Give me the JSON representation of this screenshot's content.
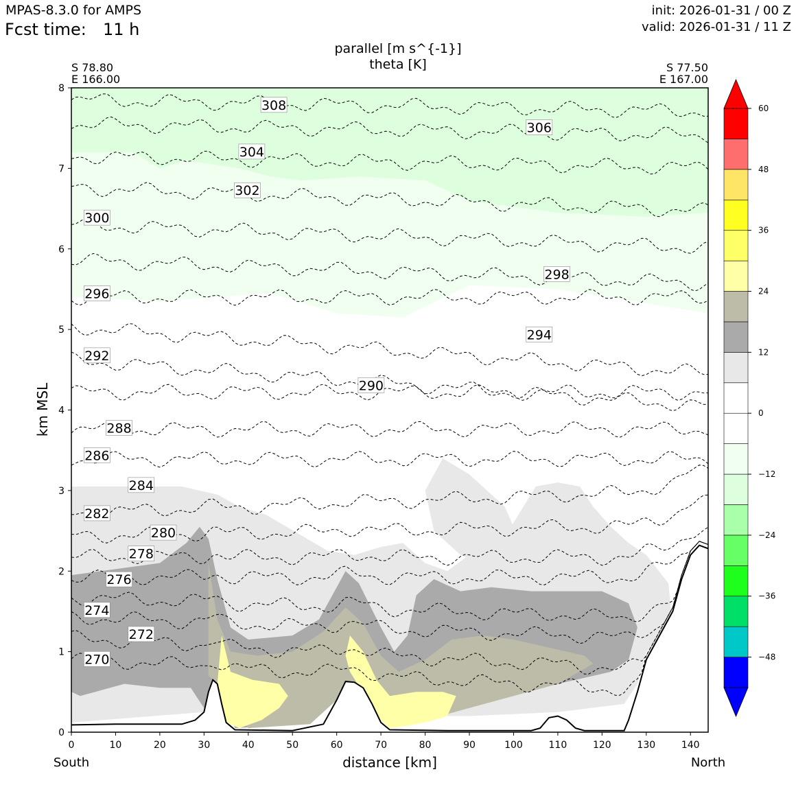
{
  "header": {
    "model": "MPAS-8.3.0 for AMPS",
    "fcst_label": "Fcst time:",
    "fcst_value": "11 h",
    "init": "init: 2026-01-31 / 00 Z",
    "valid": "valid: 2026-01-31 / 11 Z"
  },
  "plot": {
    "title_line1": "parallel [m s^{-1}]",
    "title_line2": "theta [K]",
    "left_lat": "S 78.80",
    "left_lon": "E 166.00",
    "right_lat": "S 77.50",
    "right_lon": "E 167.00",
    "south_label": "South",
    "north_label": "North"
  },
  "chart_data": {
    "type": "cross-section contour",
    "xlabel": "distance [km]",
    "ylabel": "km MSL",
    "xlim": [
      0,
      144
    ],
    "ylim": [
      0,
      8
    ],
    "x_ticks": [
      0,
      10,
      20,
      30,
      40,
      50,
      60,
      70,
      80,
      90,
      100,
      110,
      120,
      130,
      140
    ],
    "y_ticks": [
      0,
      1,
      2,
      3,
      4,
      5,
      6,
      7,
      8
    ],
    "colorbar": {
      "min": -54,
      "max": 60,
      "step": 6,
      "tick_values": [
        60,
        48,
        36,
        24,
        12,
        0,
        -12,
        -24,
        -36,
        -48
      ],
      "tick_labels": [
        "60",
        "48",
        "36",
        "24",
        "12",
        "0",
        "−12",
        "−24",
        "−36",
        "−48"
      ],
      "colors": [
        "#0000ff",
        "#00c8c8",
        "#00e066",
        "#1eff1e",
        "#66ff66",
        "#aaffaa",
        "#ddffdd",
        "#f0fff0",
        "#ffffff",
        "#ffffff",
        "#e8e8e8",
        "#aaaaaa",
        "#bcbca8",
        "#ffffa8",
        "#ffff66",
        "#ffff22",
        "#ffe566",
        "#ff6e6e",
        "#ff0000"
      ],
      "extend_min_color": "#0000ff",
      "extend_max_color": "#ff0000"
    },
    "terrain": [
      [
        0,
        0.09
      ],
      [
        10,
        0.1
      ],
      [
        25,
        0.1
      ],
      [
        28,
        0.15
      ],
      [
        30,
        0.25
      ],
      [
        31,
        0.5
      ],
      [
        32,
        0.65
      ],
      [
        33,
        0.6
      ],
      [
        34,
        0.35
      ],
      [
        35,
        0.12
      ],
      [
        37,
        0.03
      ],
      [
        50,
        0.02
      ],
      [
        57,
        0.1
      ],
      [
        60,
        0.4
      ],
      [
        62,
        0.63
      ],
      [
        64,
        0.62
      ],
      [
        66,
        0.55
      ],
      [
        68,
        0.35
      ],
      [
        70,
        0.12
      ],
      [
        72,
        0.03
      ],
      [
        85,
        0.02
      ],
      [
        104,
        0.02
      ],
      [
        106,
        0.05
      ],
      [
        108,
        0.18
      ],
      [
        110,
        0.2
      ],
      [
        112,
        0.15
      ],
      [
        114,
        0.05
      ],
      [
        116,
        0.02
      ],
      [
        125,
        0.02
      ],
      [
        126,
        0.15
      ],
      [
        128,
        0.5
      ],
      [
        130,
        0.9
      ],
      [
        133,
        1.2
      ],
      [
        136,
        1.5
      ],
      [
        138,
        1.9
      ],
      [
        140,
        2.2
      ],
      [
        142,
        2.32
      ],
      [
        144,
        2.28
      ]
    ],
    "theta_levels": [
      {
        "label": "270",
        "y0": 0.9,
        "slope": -0.003
      },
      {
        "label": "272",
        "y0": 1.16,
        "slope": -0.003
      },
      {
        "label": "274",
        "y0": 1.42,
        "slope": -0.002
      },
      {
        "label": "276",
        "y0": 1.67,
        "slope": -0.002
      },
      {
        "label": "278",
        "y0": 1.92,
        "slope": 0.0
      },
      {
        "label": "280",
        "y0": 2.17,
        "slope": 0.0
      },
      {
        "label": "282",
        "y0": 2.43,
        "slope": 0.001
      },
      {
        "label": "284",
        "y0": 2.72,
        "slope": 0.002
      },
      {
        "label": "286",
        "y0": 3.39,
        "slope": 0.0
      },
      {
        "label": "288",
        "y0": 3.76,
        "slope": 0.0
      },
      {
        "label": "290",
        "y0": 4.22,
        "slope": 0.0
      },
      {
        "label": "292",
        "y0": 4.62,
        "slope": -0.004
      },
      {
        "label": "294",
        "y0": 5.03,
        "slope": -0.004
      },
      {
        "label": "296",
        "y0": 5.4,
        "slope": 0.0
      },
      {
        "label": "298",
        "y0": 5.86,
        "slope": -0.002
      },
      {
        "label": "300",
        "y0": 6.3,
        "slope": -0.002
      },
      {
        "label": "302",
        "y0": 6.76,
        "slope": -0.002
      },
      {
        "label": "304",
        "y0": 7.15,
        "slope": -0.001
      },
      {
        "label": "306",
        "y0": 7.55,
        "slope": -0.001
      },
      {
        "label": "308",
        "y0": 7.85,
        "slope": -0.001
      }
    ],
    "contour_labels": [
      {
        "text": "308",
        "x": 43,
        "y": 7.78
      },
      {
        "text": "306",
        "x": 103,
        "y": 7.5
      },
      {
        "text": "304",
        "x": 38,
        "y": 7.2
      },
      {
        "text": "302",
        "x": 37,
        "y": 6.72
      },
      {
        "text": "300",
        "x": 3,
        "y": 6.38
      },
      {
        "text": "298",
        "x": 107,
        "y": 5.68
      },
      {
        "text": "296",
        "x": 3,
        "y": 5.44
      },
      {
        "text": "294",
        "x": 103,
        "y": 4.93
      },
      {
        "text": "292",
        "x": 3,
        "y": 4.67
      },
      {
        "text": "290",
        "x": 65,
        "y": 4.3
      },
      {
        "text": "288",
        "x": 8,
        "y": 3.77
      },
      {
        "text": "286",
        "x": 3,
        "y": 3.43
      },
      {
        "text": "284",
        "x": 13,
        "y": 3.06
      },
      {
        "text": "282",
        "x": 3,
        "y": 2.71
      },
      {
        "text": "280",
        "x": 18,
        "y": 2.47
      },
      {
        "text": "278",
        "x": 13,
        "y": 2.21
      },
      {
        "text": "276",
        "x": 8,
        "y": 1.89
      },
      {
        "text": "274",
        "x": 3,
        "y": 1.51
      },
      {
        "text": "272",
        "x": 13,
        "y": 1.21
      },
      {
        "text": "270",
        "x": 3,
        "y": 0.9
      }
    ],
    "shaded_regions": [
      {
        "value_range": "-12 to -6",
        "color": "#f0fff0",
        "points": [
          [
            0,
            7.2
          ],
          [
            144,
            7.2
          ],
          [
            144,
            5.2
          ],
          [
            110,
            5.5
          ],
          [
            90,
            5.55
          ],
          [
            75,
            5.15
          ],
          [
            60,
            5.2
          ],
          [
            45,
            5.45
          ],
          [
            20,
            5.35
          ],
          [
            0,
            5.4
          ]
        ]
      },
      {
        "value_range": "-18 to -12",
        "color": "#ddffdd",
        "points": [
          [
            0,
            8
          ],
          [
            144,
            8
          ],
          [
            144,
            6.45
          ],
          [
            130,
            6.4
          ],
          [
            110,
            6.45
          ],
          [
            90,
            6.6
          ],
          [
            80,
            6.85
          ],
          [
            65,
            6.9
          ],
          [
            52,
            6.85
          ],
          [
            45,
            6.9
          ],
          [
            38,
            7.0
          ],
          [
            26,
            7.1
          ],
          [
            20,
            7.0
          ],
          [
            14,
            7.2
          ],
          [
            0,
            7.2
          ]
        ]
      },
      {
        "value_range": "6 to 12",
        "color": "#e8e8e8",
        "points": [
          [
            0,
            3.05
          ],
          [
            25,
            3.05
          ],
          [
            33,
            2.95
          ],
          [
            38,
            2.8
          ],
          [
            44,
            2.7
          ],
          [
            58,
            2.25
          ],
          [
            64,
            2.2
          ],
          [
            70,
            2.3
          ],
          [
            75,
            2.35
          ],
          [
            80,
            2.1
          ],
          [
            85,
            2.0
          ],
          [
            90,
            2.2
          ],
          [
            95,
            2.2
          ],
          [
            100,
            2.6
          ],
          [
            105,
            3.05
          ],
          [
            110,
            3.1
          ],
          [
            115,
            3.05
          ],
          [
            118,
            2.8
          ],
          [
            122,
            2.55
          ],
          [
            126,
            2.35
          ],
          [
            130,
            2.2
          ],
          [
            135,
            1.85
          ],
          [
            136,
            1.3
          ],
          [
            130,
            1.0
          ],
          [
            128,
            0.6
          ],
          [
            125,
            0.35
          ],
          [
            110,
            0.25
          ],
          [
            90,
            0.2
          ],
          [
            72,
            0.2
          ],
          [
            70,
            0.2
          ],
          [
            64,
            0.65
          ],
          [
            60,
            0.4
          ],
          [
            50,
            0.2
          ],
          [
            37,
            0.2
          ],
          [
            33,
            0.6
          ],
          [
            30,
            0.25
          ],
          [
            0,
            0.12
          ]
        ]
      },
      {
        "value_range": "6 to 12 (upper lobe)",
        "color": "#e8e8e8",
        "points": [
          [
            84,
            3.4
          ],
          [
            90,
            3.2
          ],
          [
            98,
            2.8
          ],
          [
            102,
            2.3
          ],
          [
            97,
            2.0
          ],
          [
            88,
            2.2
          ],
          [
            82,
            2.5
          ],
          [
            80,
            3.0
          ]
        ]
      },
      {
        "value_range": "12 to 18",
        "color": "#aaaaaa",
        "points": [
          [
            0,
            1.95
          ],
          [
            20,
            2.1
          ],
          [
            26,
            2.35
          ],
          [
            29,
            2.55
          ],
          [
            31,
            2.4
          ],
          [
            33,
            1.9
          ],
          [
            36,
            1.3
          ],
          [
            40,
            1.15
          ],
          [
            50,
            1.2
          ],
          [
            56,
            1.4
          ],
          [
            60,
            1.8
          ],
          [
            62,
            2.0
          ],
          [
            65,
            1.85
          ],
          [
            70,
            1.3
          ],
          [
            73,
            1.0
          ],
          [
            76,
            1.2
          ],
          [
            78,
            1.7
          ],
          [
            82,
            1.9
          ],
          [
            88,
            1.75
          ],
          [
            95,
            1.8
          ],
          [
            104,
            1.75
          ],
          [
            112,
            1.75
          ],
          [
            120,
            1.75
          ],
          [
            126,
            1.6
          ],
          [
            128,
            1.3
          ],
          [
            126,
            0.9
          ],
          [
            122,
            0.75
          ],
          [
            110,
            0.6
          ],
          [
            100,
            0.55
          ],
          [
            85,
            0.3
          ],
          [
            72,
            0.07
          ],
          [
            70,
            0.2
          ],
          [
            64,
            0.65
          ],
          [
            60,
            0.4
          ],
          [
            52,
            0.1
          ],
          [
            37,
            0.05
          ],
          [
            33,
            0.6
          ],
          [
            30,
            0.3
          ],
          [
            27,
            0.55
          ],
          [
            20,
            0.55
          ],
          [
            12,
            0.6
          ],
          [
            2,
            0.45
          ],
          [
            0,
            0.5
          ]
        ]
      },
      {
        "value_range": "18 to 24",
        "color": "#bcbca8",
        "points": [
          [
            31,
            2.1
          ],
          [
            33,
            1.4
          ],
          [
            36,
            1.0
          ],
          [
            42,
            0.95
          ],
          [
            50,
            1.0
          ],
          [
            57,
            1.25
          ],
          [
            62,
            1.55
          ],
          [
            66,
            1.35
          ],
          [
            70,
            0.95
          ],
          [
            74,
            0.75
          ],
          [
            80,
            0.9
          ],
          [
            86,
            1.15
          ],
          [
            93,
            1.2
          ],
          [
            100,
            1.15
          ],
          [
            108,
            1.05
          ],
          [
            116,
            0.95
          ],
          [
            118,
            0.85
          ],
          [
            110,
            0.6
          ],
          [
            100,
            0.45
          ],
          [
            90,
            0.3
          ],
          [
            80,
            0.15
          ],
          [
            72,
            0.07
          ],
          [
            64,
            0.62
          ],
          [
            60,
            0.4
          ],
          [
            54,
            0.1
          ],
          [
            40,
            0.05
          ],
          [
            33,
            0.6
          ],
          [
            31,
            0.7
          ]
        ]
      },
      {
        "value_range": "24 to 30 (left)",
        "color": "#ffffa8",
        "points": [
          [
            34,
            1.2
          ],
          [
            36,
            0.75
          ],
          [
            41,
            0.65
          ],
          [
            47,
            0.6
          ],
          [
            49,
            0.45
          ],
          [
            47,
            0.3
          ],
          [
            43,
            0.15
          ],
          [
            38,
            0.05
          ],
          [
            35,
            0.12
          ],
          [
            33,
            0.6
          ]
        ]
      },
      {
        "value_range": "24 to 30 (right)",
        "color": "#ffffa8",
        "points": [
          [
            63,
            1.2
          ],
          [
            66,
            1.0
          ],
          [
            69,
            0.65
          ],
          [
            72,
            0.45
          ],
          [
            78,
            0.5
          ],
          [
            84,
            0.5
          ],
          [
            87,
            0.45
          ],
          [
            85,
            0.2
          ],
          [
            80,
            0.12
          ],
          [
            76,
            0.08
          ],
          [
            72,
            0.05
          ],
          [
            70,
            0.15
          ],
          [
            67,
            0.4
          ],
          [
            63,
            0.75
          ],
          [
            62,
            0.95
          ]
        ]
      }
    ]
  }
}
